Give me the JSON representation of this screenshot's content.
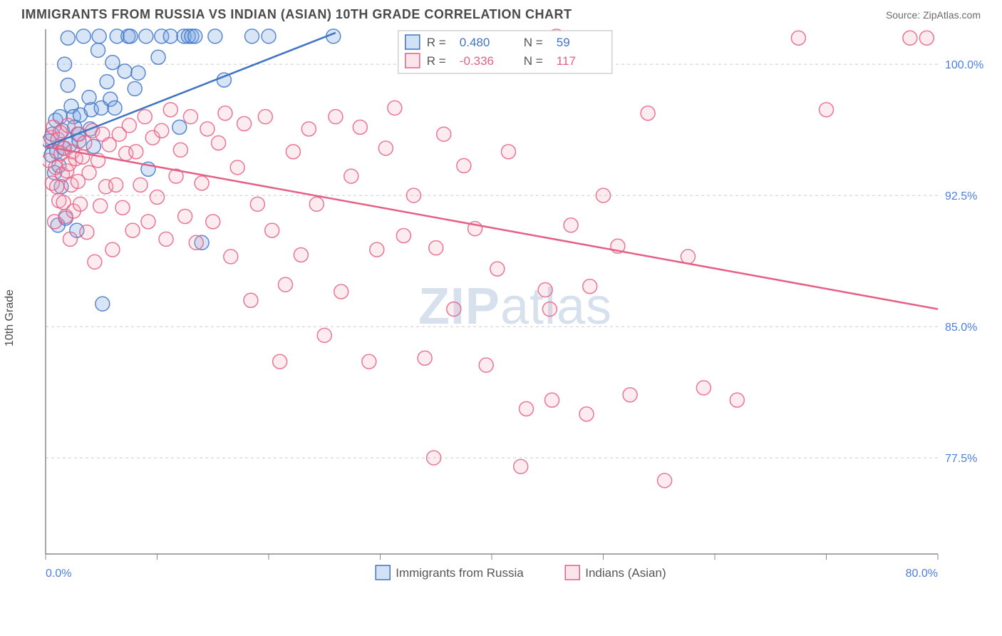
{
  "header": {
    "title": "IMMIGRANTS FROM RUSSIA VS INDIAN (ASIAN) 10TH GRADE CORRELATION CHART",
    "source_prefix": "Source: ",
    "source_name": "ZipAtlas.com"
  },
  "axes": {
    "y_label": "10th Grade",
    "x_min": 0.0,
    "x_max": 80.0,
    "y_min": 72.0,
    "y_max": 102.0,
    "x_ticks": [
      0.0,
      80.0
    ],
    "x_tick_labels": [
      "0.0%",
      "80.0%"
    ],
    "y_ticks": [
      77.5,
      85.0,
      92.5,
      100.0
    ],
    "y_tick_labels": [
      "77.5%",
      "85.0%",
      "92.5%",
      "100.0%"
    ],
    "x_minor_gap_count": 8
  },
  "chart": {
    "type": "scatter",
    "background_color": "#ffffff",
    "grid_color": "#cccccc",
    "axis_color": "#888888",
    "marker_radius": 10,
    "series": [
      {
        "key": "russia",
        "label": "Immigrants from Russia",
        "fill": "#7aa8e6",
        "stroke": "#3f73c4",
        "R": "0.480",
        "N": "59",
        "trend": {
          "x1": 0,
          "y1": 95.3,
          "x2": 26,
          "y2": 101.8
        },
        "points": [
          [
            0.3,
            95.6
          ],
          [
            0.5,
            94.8
          ],
          [
            0.6,
            96.0
          ],
          [
            0.8,
            93.8
          ],
          [
            0.9,
            96.8
          ],
          [
            1.0,
            95.0
          ],
          [
            1.1,
            90.8
          ],
          [
            1.2,
            94.2
          ],
          [
            1.3,
            97.0
          ],
          [
            1.4,
            93.0
          ],
          [
            1.5,
            96.2
          ],
          [
            1.6,
            95.2
          ],
          [
            1.7,
            100.0
          ],
          [
            1.8,
            91.2
          ],
          [
            2.0,
            98.8
          ],
          [
            2.0,
            101.5
          ],
          [
            2.2,
            95.4
          ],
          [
            2.3,
            97.6
          ],
          [
            2.5,
            97.0
          ],
          [
            2.6,
            96.4
          ],
          [
            2.8,
            90.5
          ],
          [
            2.9,
            96.0
          ],
          [
            3.0,
            95.6
          ],
          [
            3.1,
            97.1
          ],
          [
            3.4,
            101.6
          ],
          [
            3.9,
            98.1
          ],
          [
            4.0,
            96.3
          ],
          [
            4.1,
            97.4
          ],
          [
            4.3,
            95.3
          ],
          [
            4.7,
            100.8
          ],
          [
            4.8,
            101.6
          ],
          [
            5.0,
            97.5
          ],
          [
            5.1,
            86.3
          ],
          [
            5.5,
            99.0
          ],
          [
            5.8,
            98.0
          ],
          [
            6.0,
            100.1
          ],
          [
            6.2,
            97.5
          ],
          [
            6.4,
            101.6
          ],
          [
            7.1,
            99.6
          ],
          [
            7.4,
            101.6
          ],
          [
            7.6,
            101.6
          ],
          [
            8.0,
            98.6
          ],
          [
            8.3,
            99.5
          ],
          [
            9.0,
            101.6
          ],
          [
            9.2,
            94.0
          ],
          [
            10.1,
            100.4
          ],
          [
            10.4,
            101.6
          ],
          [
            11.2,
            101.6
          ],
          [
            12.0,
            96.4
          ],
          [
            12.4,
            101.6
          ],
          [
            12.8,
            101.6
          ],
          [
            13.1,
            101.6
          ],
          [
            13.4,
            101.6
          ],
          [
            14.0,
            89.8
          ],
          [
            15.2,
            101.6
          ],
          [
            16.0,
            99.1
          ],
          [
            18.5,
            101.6
          ],
          [
            20.0,
            101.6
          ],
          [
            25.8,
            101.6
          ]
        ]
      },
      {
        "key": "indian",
        "label": "Indians (Asian)",
        "fill": "#f2a8ba",
        "stroke": "#e65f85",
        "R": "-0.336",
        "N": "117",
        "trend": {
          "x1": 0,
          "y1": 95.3,
          "x2": 80,
          "y2": 86.0
        },
        "points": [
          [
            0.3,
            94.5
          ],
          [
            0.5,
            95.8
          ],
          [
            0.6,
            93.2
          ],
          [
            0.7,
            96.4
          ],
          [
            0.8,
            91.0
          ],
          [
            0.9,
            94.1
          ],
          [
            1.0,
            93.0
          ],
          [
            1.1,
            95.7
          ],
          [
            1.2,
            92.2
          ],
          [
            1.3,
            96.1
          ],
          [
            1.4,
            94.9
          ],
          [
            1.5,
            93.7
          ],
          [
            1.6,
            92.1
          ],
          [
            1.7,
            95.2
          ],
          [
            1.8,
            91.3
          ],
          [
            1.9,
            93.9
          ],
          [
            2.0,
            96.5
          ],
          [
            2.1,
            94.3
          ],
          [
            2.2,
            90.0
          ],
          [
            2.3,
            93.1
          ],
          [
            2.4,
            95.0
          ],
          [
            2.5,
            91.6
          ],
          [
            2.7,
            94.6
          ],
          [
            2.9,
            93.3
          ],
          [
            3.0,
            96.0
          ],
          [
            3.1,
            92.0
          ],
          [
            3.3,
            94.7
          ],
          [
            3.5,
            95.5
          ],
          [
            3.7,
            90.4
          ],
          [
            3.9,
            93.8
          ],
          [
            4.2,
            96.2
          ],
          [
            4.4,
            88.7
          ],
          [
            4.7,
            94.5
          ],
          [
            4.9,
            91.9
          ],
          [
            5.1,
            96.0
          ],
          [
            5.4,
            93.0
          ],
          [
            5.7,
            95.4
          ],
          [
            6.0,
            89.4
          ],
          [
            6.3,
            93.1
          ],
          [
            6.6,
            96.0
          ],
          [
            6.9,
            91.8
          ],
          [
            7.2,
            94.9
          ],
          [
            7.5,
            96.5
          ],
          [
            7.8,
            90.5
          ],
          [
            8.1,
            95.0
          ],
          [
            8.5,
            93.1
          ],
          [
            8.9,
            97.0
          ],
          [
            9.2,
            91.0
          ],
          [
            9.6,
            95.8
          ],
          [
            10.0,
            92.4
          ],
          [
            10.4,
            96.2
          ],
          [
            10.8,
            90.0
          ],
          [
            11.2,
            97.4
          ],
          [
            11.7,
            93.6
          ],
          [
            12.1,
            95.1
          ],
          [
            12.5,
            91.3
          ],
          [
            13.0,
            97.0
          ],
          [
            13.5,
            89.8
          ],
          [
            14.0,
            93.2
          ],
          [
            14.5,
            96.3
          ],
          [
            15.0,
            91.0
          ],
          [
            15.5,
            95.5
          ],
          [
            16.1,
            97.2
          ],
          [
            16.6,
            89.0
          ],
          [
            17.2,
            94.1
          ],
          [
            17.8,
            96.6
          ],
          [
            18.4,
            86.5
          ],
          [
            19.0,
            92.0
          ],
          [
            19.7,
            97.0
          ],
          [
            20.3,
            90.5
          ],
          [
            21.0,
            83.0
          ],
          [
            21.5,
            87.4
          ],
          [
            22.2,
            95.0
          ],
          [
            22.9,
            89.1
          ],
          [
            23.6,
            96.3
          ],
          [
            24.3,
            92.0
          ],
          [
            25.0,
            84.5
          ],
          [
            26.0,
            97.0
          ],
          [
            26.5,
            87.0
          ],
          [
            27.4,
            93.6
          ],
          [
            28.2,
            96.4
          ],
          [
            29.0,
            83.0
          ],
          [
            29.7,
            89.4
          ],
          [
            30.5,
            95.2
          ],
          [
            31.3,
            97.5
          ],
          [
            32.1,
            90.2
          ],
          [
            33.0,
            92.5
          ],
          [
            34.0,
            83.2
          ],
          [
            34.8,
            77.5
          ],
          [
            35.0,
            89.5
          ],
          [
            35.7,
            96.0
          ],
          [
            36.6,
            86.0
          ],
          [
            37.5,
            94.2
          ],
          [
            38.5,
            90.6
          ],
          [
            39.5,
            82.8
          ],
          [
            40.5,
            88.3
          ],
          [
            41.5,
            95.0
          ],
          [
            42.6,
            77.0
          ],
          [
            43.1,
            80.3
          ],
          [
            44.8,
            87.1
          ],
          [
            45.2,
            86.0
          ],
          [
            45.4,
            80.8
          ],
          [
            45.8,
            101.6
          ],
          [
            47.1,
            90.8
          ],
          [
            48.5,
            80.0
          ],
          [
            48.8,
            87.3
          ],
          [
            50.0,
            92.5
          ],
          [
            51.3,
            89.6
          ],
          [
            52.4,
            81.1
          ],
          [
            54.0,
            97.2
          ],
          [
            55.5,
            76.2
          ],
          [
            57.6,
            89.0
          ],
          [
            59.0,
            81.5
          ],
          [
            62.0,
            80.8
          ],
          [
            67.5,
            101.5
          ],
          [
            70.0,
            97.4
          ],
          [
            77.5,
            101.5
          ],
          [
            79.0,
            101.5
          ]
        ]
      }
    ]
  },
  "legend_top": {
    "R_label": "R =",
    "N_label": "N ="
  },
  "watermark": {
    "left": "ZIP",
    "right": "atlas"
  }
}
